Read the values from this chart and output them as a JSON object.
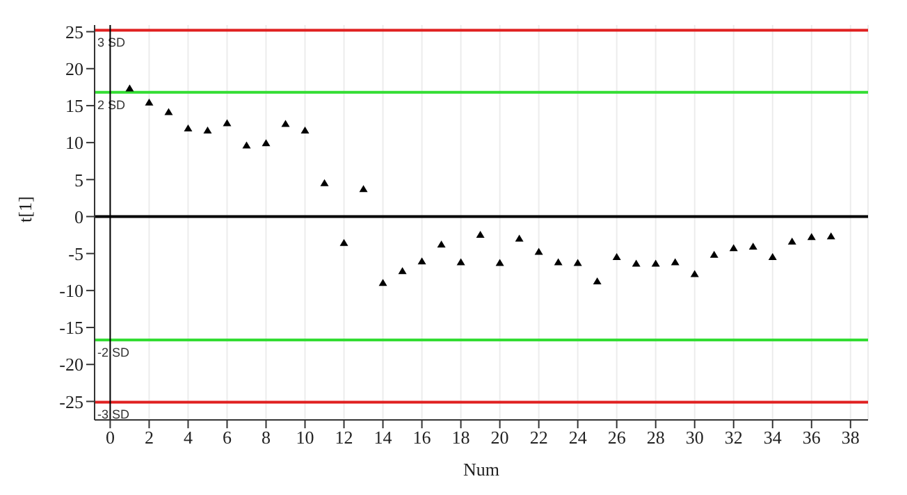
{
  "chart_data": {
    "type": "scatter",
    "xlabel": "Num",
    "ylabel": "t[1]",
    "x": [
      1,
      2,
      3,
      4,
      5,
      6,
      7,
      8,
      9,
      10,
      11,
      12,
      13,
      14,
      15,
      16,
      17,
      18,
      19,
      20,
      21,
      22,
      23,
      24,
      25,
      26,
      27,
      28,
      29,
      30,
      31,
      32,
      33,
      34,
      35,
      36,
      37
    ],
    "series": [
      {
        "color": "#000000",
        "values": [
          17.3,
          15.4,
          14.1,
          11.9,
          11.6,
          12.6,
          9.6,
          9.9,
          12.5,
          11.6,
          4.5,
          -3.6,
          3.7,
          -9.0,
          -7.4,
          -6.1,
          -3.8,
          -6.2,
          -2.5,
          -6.3,
          -3.0,
          -4.8,
          -6.2,
          -6.3,
          -8.8,
          -5.5,
          -6.4,
          -6.4,
          -6.2,
          -7.8,
          -5.2,
          -4.3,
          -4.1,
          -5.5,
          -3.4,
          -2.8,
          -2.7
        ]
      }
    ],
    "marker": "triangle",
    "xlim": [
      -0.8,
      38.9
    ],
    "xticks": [
      0,
      2,
      4,
      6,
      8,
      10,
      12,
      14,
      16,
      18,
      20,
      22,
      24,
      26,
      28,
      30,
      32,
      34,
      36,
      38
    ],
    "ylim": [
      -27.5,
      25.9
    ],
    "yticks": [
      -25,
      -20,
      -15,
      -10,
      -5,
      0,
      5,
      10,
      15,
      20,
      25
    ],
    "grid": "x",
    "ref_lines": [
      {
        "axis": "y",
        "value": 25.2,
        "label": "3 SD",
        "color": "#e02020"
      },
      {
        "axis": "y",
        "value": 16.8,
        "label": "2 SD",
        "color": "#33dd33"
      },
      {
        "axis": "y",
        "value": 0,
        "label": null,
        "color": "#000000"
      },
      {
        "axis": "y",
        "value": -16.7,
        "label": "-2 SD",
        "color": "#33dd33"
      },
      {
        "axis": "y",
        "value": -25.1,
        "label": "-3 SD",
        "color": "#e02020"
      },
      {
        "axis": "x",
        "value": 0,
        "label": null,
        "color": "#000000"
      }
    ]
  }
}
